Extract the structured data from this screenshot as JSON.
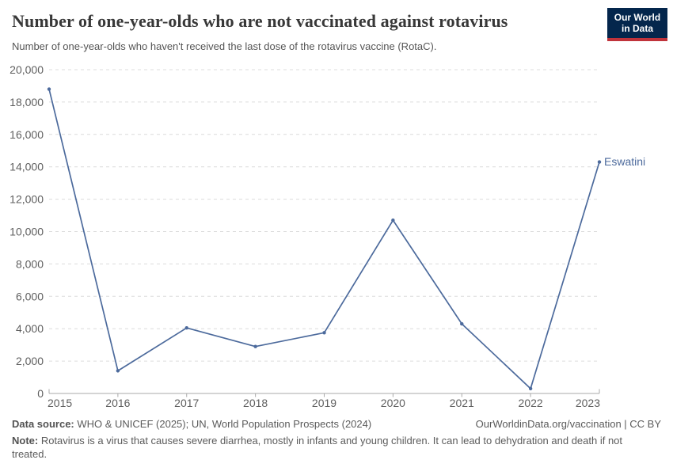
{
  "header": {
    "title": "Number of one-year-olds who are not vaccinated against rotavirus",
    "subtitle": "Number of one-year-olds who haven't received the last dose of the rotavirus vaccine (RotaC).",
    "logo": {
      "line1": "Our World",
      "line2": "in Data",
      "bg_color": "#04264C",
      "stripe_color": "#C0333B"
    }
  },
  "chart_data": {
    "type": "line",
    "title": "Number of one-year-olds who are not vaccinated against rotavirus",
    "subtitle": "Number of one-year-olds who haven't received the last dose of the rotavirus vaccine (RotaC).",
    "x": [
      2015,
      2016,
      2017,
      2018,
      2019,
      2020,
      2021,
      2022,
      2023
    ],
    "series": [
      {
        "name": "Eswatini",
        "values": [
          18800,
          1400,
          4050,
          2900,
          3750,
          10700,
          4300,
          300,
          14300
        ],
        "color": "#4C6A9C"
      }
    ],
    "xlabel": "",
    "ylabel": "",
    "ylim": [
      0,
      20000
    ],
    "yticks": [
      0,
      2000,
      4000,
      6000,
      8000,
      10000,
      12000,
      14000,
      16000,
      18000,
      20000
    ],
    "grid": "horizontal-dashed",
    "legend_position": "end-of-line-label",
    "end_label": "Eswatini",
    "colors": {
      "gridline": "#dcdcdc",
      "axis": "#a9a9a9",
      "tick_text": "#5f5f5f"
    }
  },
  "footer": {
    "datasource_label": "Data source:",
    "datasource_text": " WHO & UNICEF (2025); UN, World Population Prospects (2024)",
    "rights": "OurWorldinData.org/vaccination | CC BY",
    "note_label": "Note:",
    "note_text": " Rotavirus is a virus that causes severe diarrhea, mostly in infants and young children. It can lead to dehydration and death if not treated."
  }
}
